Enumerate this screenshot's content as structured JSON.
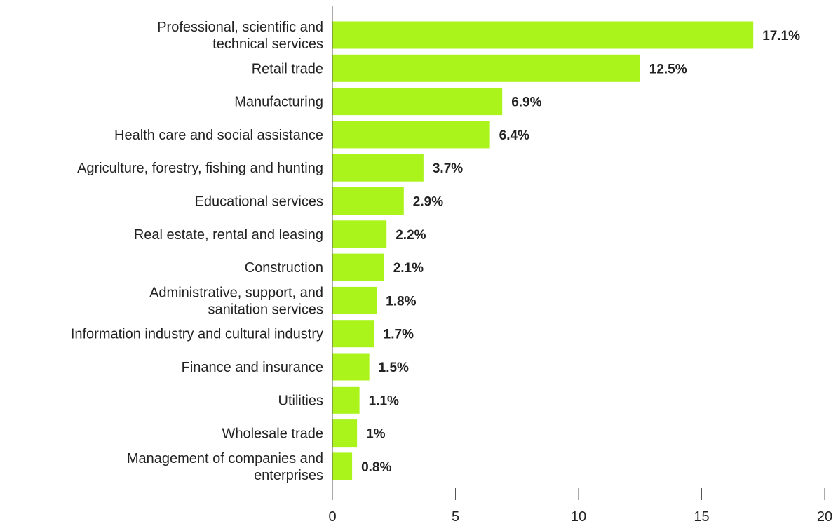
{
  "chart_data": {
    "type": "bar",
    "orientation": "horizontal",
    "categories": [
      "Professional, scientific and technical services",
      "Retail trade",
      "Manufacturing",
      "Health care and social assistance",
      "Agriculture, forestry, fishing and hunting",
      "Educational services",
      "Real estate, rental and leasing",
      "Construction",
      "Administrative, support, and sanitation services",
      "Information industry and cultural industry",
      "Finance and insurance",
      "Utilities",
      "Wholesale trade",
      "Management of companies and enterprises"
    ],
    "category_lines": [
      [
        "Professional, scientific and",
        "technical services"
      ],
      [
        "Retail trade"
      ],
      [
        "Manufacturing"
      ],
      [
        "Health care and social assistance"
      ],
      [
        "Agriculture, forestry, fishing and hunting"
      ],
      [
        "Educational services"
      ],
      [
        "Real estate, rental and leasing"
      ],
      [
        "Construction"
      ],
      [
        "Administrative, support, and",
        "sanitation services"
      ],
      [
        "Information industry and cultural industry"
      ],
      [
        "Finance and insurance"
      ],
      [
        "Utilities"
      ],
      [
        "Wholesale trade"
      ],
      [
        "Management of companies and",
        "enterprises"
      ]
    ],
    "values": [
      17.1,
      12.5,
      6.9,
      6.4,
      3.7,
      2.9,
      2.2,
      2.1,
      1.8,
      1.7,
      1.5,
      1.1,
      1,
      0.8
    ],
    "data_labels": [
      "17.1%",
      "12.5%",
      "6.9%",
      "6.4%",
      "3.7%",
      "2.9%",
      "2.2%",
      "2.1%",
      "1.8%",
      "1.7%",
      "1.5%",
      "1.1%",
      "1%",
      "0.8%"
    ],
    "xlim": [
      0,
      20
    ],
    "xticks": [
      0,
      5,
      10,
      15,
      20
    ],
    "xtick_labels": [
      "0",
      "5",
      "10",
      "15",
      "20"
    ],
    "title": "",
    "xlabel": "",
    "ylabel": "",
    "grid": false,
    "legend": "none",
    "bar_color": "#aaf31b",
    "text_color": "#222222",
    "axis_color": "#555555"
  }
}
